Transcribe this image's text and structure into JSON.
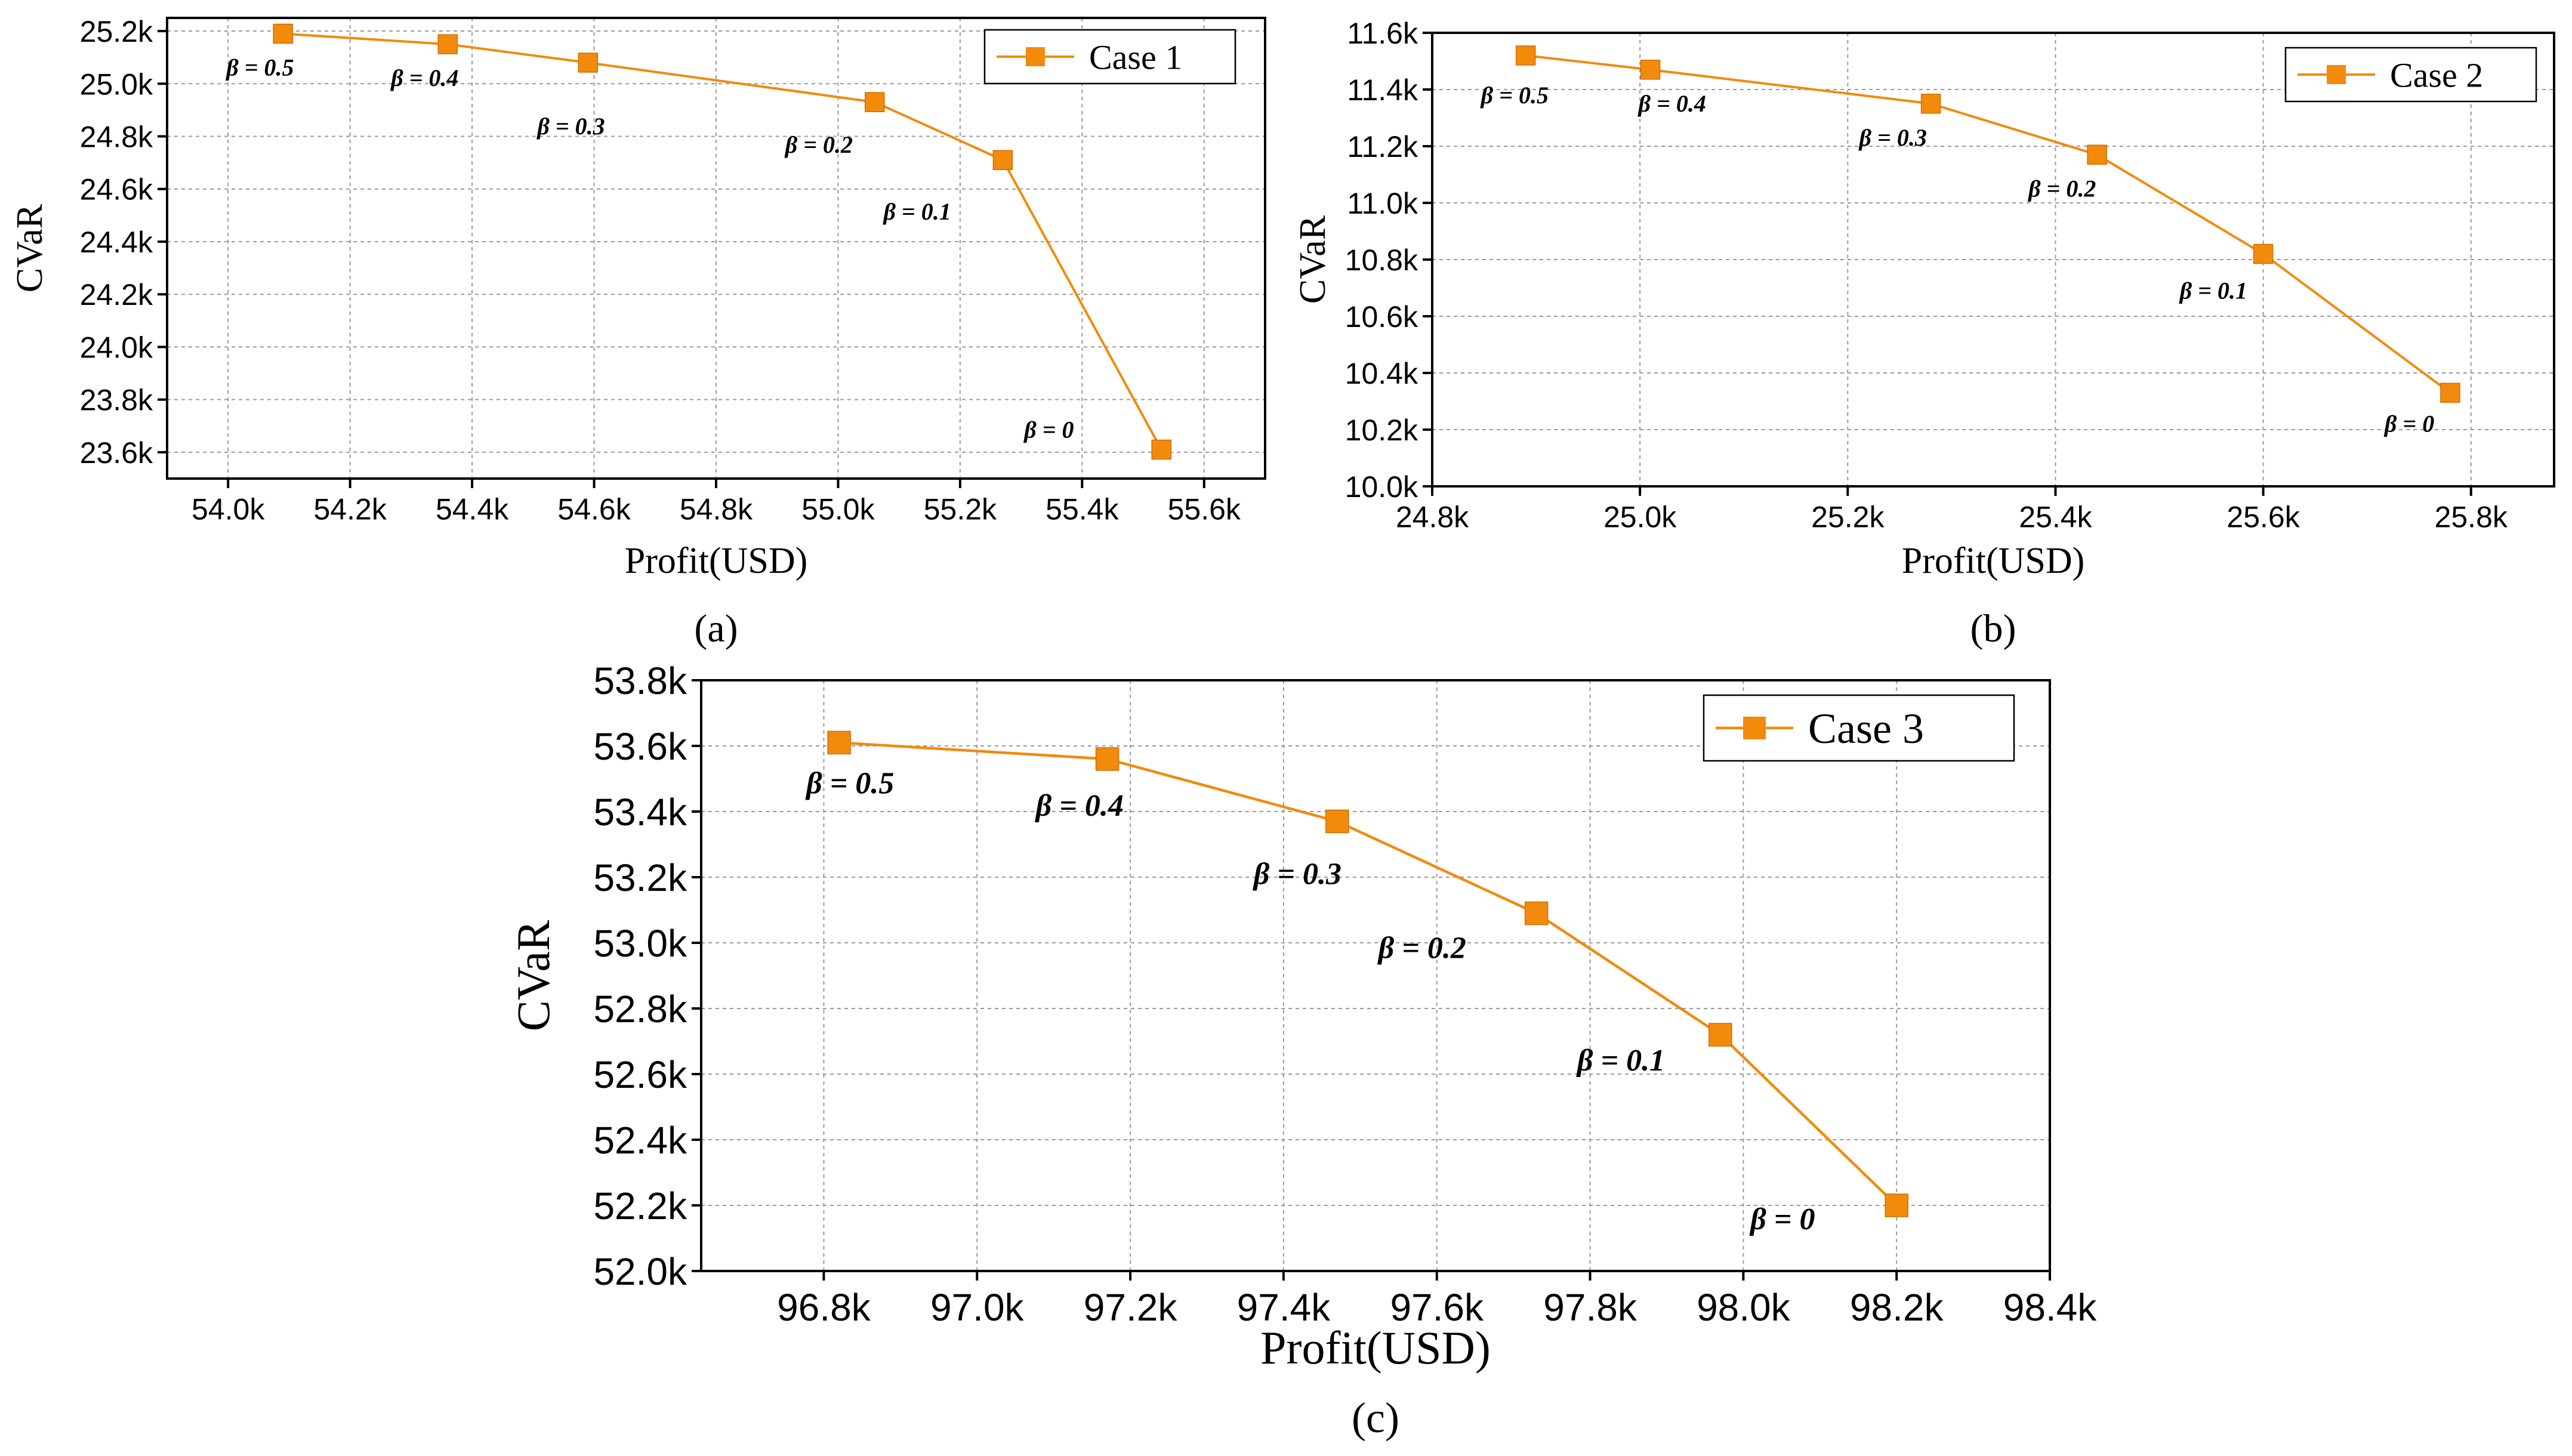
{
  "chart_data": [
    {
      "type": "line",
      "panel_label": "(a)",
      "xlabel": "Profit(USD)",
      "ylabel": "CVaR",
      "xlim": [
        53.9,
        55.7
      ],
      "ylim": [
        23.5,
        25.25
      ],
      "x_ticks": [
        54.0,
        54.2,
        54.4,
        54.6,
        54.8,
        55.0,
        55.2,
        55.4,
        55.6
      ],
      "x_tick_labels": [
        "54.0k",
        "54.2k",
        "54.4k",
        "54.6k",
        "54.8k",
        "55.0k",
        "55.2k",
        "55.4k",
        "55.6k"
      ],
      "y_ticks": [
        23.6,
        23.8,
        24.0,
        24.2,
        24.4,
        24.6,
        24.8,
        25.0,
        25.2
      ],
      "y_tick_labels": [
        "23.6k",
        "23.8k",
        "24.0k",
        "24.2k",
        "24.4k",
        "24.6k",
        "24.8k",
        "25.0k",
        "25.2k"
      ],
      "grid": true,
      "legend_position": "top-right",
      "color": "#F28A0C",
      "series": [
        {
          "name": "Case 1",
          "x": [
            54.09,
            54.36,
            54.59,
            55.06,
            55.27,
            55.53
          ],
          "y": [
            25.19,
            25.15,
            25.08,
            24.93,
            24.71,
            23.61
          ],
          "point_labels": [
            "β = 0.5",
            "β = 0.4",
            "β = 0.3",
            "β = 0.2",
            "β = 0.1",
            "β = 0"
          ]
        }
      ]
    },
    {
      "type": "line",
      "panel_label": "(b)",
      "xlabel": "Profit(USD)",
      "ylabel": "CVaR",
      "xlim": [
        24.8,
        25.88
      ],
      "ylim": [
        10.0,
        11.6
      ],
      "x_ticks": [
        24.8,
        25.0,
        25.2,
        25.4,
        25.6,
        25.8
      ],
      "x_tick_labels": [
        "24.8k",
        "25.0k",
        "25.2k",
        "25.4k",
        "25.6k",
        "25.8k"
      ],
      "y_ticks": [
        10.0,
        10.2,
        10.4,
        10.6,
        10.8,
        11.0,
        11.2,
        11.4,
        11.6
      ],
      "y_tick_labels": [
        "10.0k",
        "10.2k",
        "10.4k",
        "10.6k",
        "10.8k",
        "11.0k",
        "11.2k",
        "11.4k",
        "11.6k"
      ],
      "grid": true,
      "legend_position": "top-right",
      "color": "#F28A0C",
      "series": [
        {
          "name": "Case 2",
          "x": [
            24.89,
            25.01,
            25.28,
            25.44,
            25.6,
            25.78
          ],
          "y": [
            11.52,
            11.47,
            11.35,
            11.17,
            10.82,
            10.33
          ],
          "point_labels": [
            "β = 0.5",
            "β = 0.4",
            "β = 0.3",
            "β = 0.2",
            "β = 0.1",
            "β = 0"
          ]
        }
      ]
    },
    {
      "type": "line",
      "panel_label": "(c)",
      "xlabel": "Profit(USD)",
      "ylabel": "CVaR",
      "xlim": [
        96.64,
        98.4
      ],
      "ylim": [
        52.0,
        53.8
      ],
      "x_ticks": [
        96.8,
        97.0,
        97.2,
        97.4,
        97.6,
        97.8,
        98.0,
        98.2,
        98.4
      ],
      "x_tick_labels": [
        "96.8k",
        "97.0k",
        "97.2k",
        "97.4k",
        "97.6k",
        "97.8k",
        "98.0k",
        "98.2k",
        "98.4k"
      ],
      "y_ticks": [
        52.0,
        52.2,
        52.4,
        52.6,
        52.8,
        53.0,
        53.2,
        53.4,
        53.6,
        53.8
      ],
      "y_tick_labels": [
        "52.0k",
        "52.2k",
        "52.4k",
        "52.6k",
        "52.8k",
        "53.0k",
        "53.2k",
        "53.4k",
        "53.6k",
        "53.8k"
      ],
      "grid": true,
      "legend_position": "top-right",
      "color": "#F28A0C",
      "series": [
        {
          "name": "Case 3",
          "x": [
            96.82,
            97.17,
            97.47,
            97.73,
            97.97,
            98.2
          ],
          "y": [
            53.61,
            53.56,
            53.37,
            53.09,
            52.72,
            52.2
          ],
          "point_labels": [
            "β = 0.5",
            "β = 0.4",
            "β = 0.3",
            "β = 0.2",
            "β = 0.1",
            "β = 0"
          ]
        }
      ]
    }
  ]
}
